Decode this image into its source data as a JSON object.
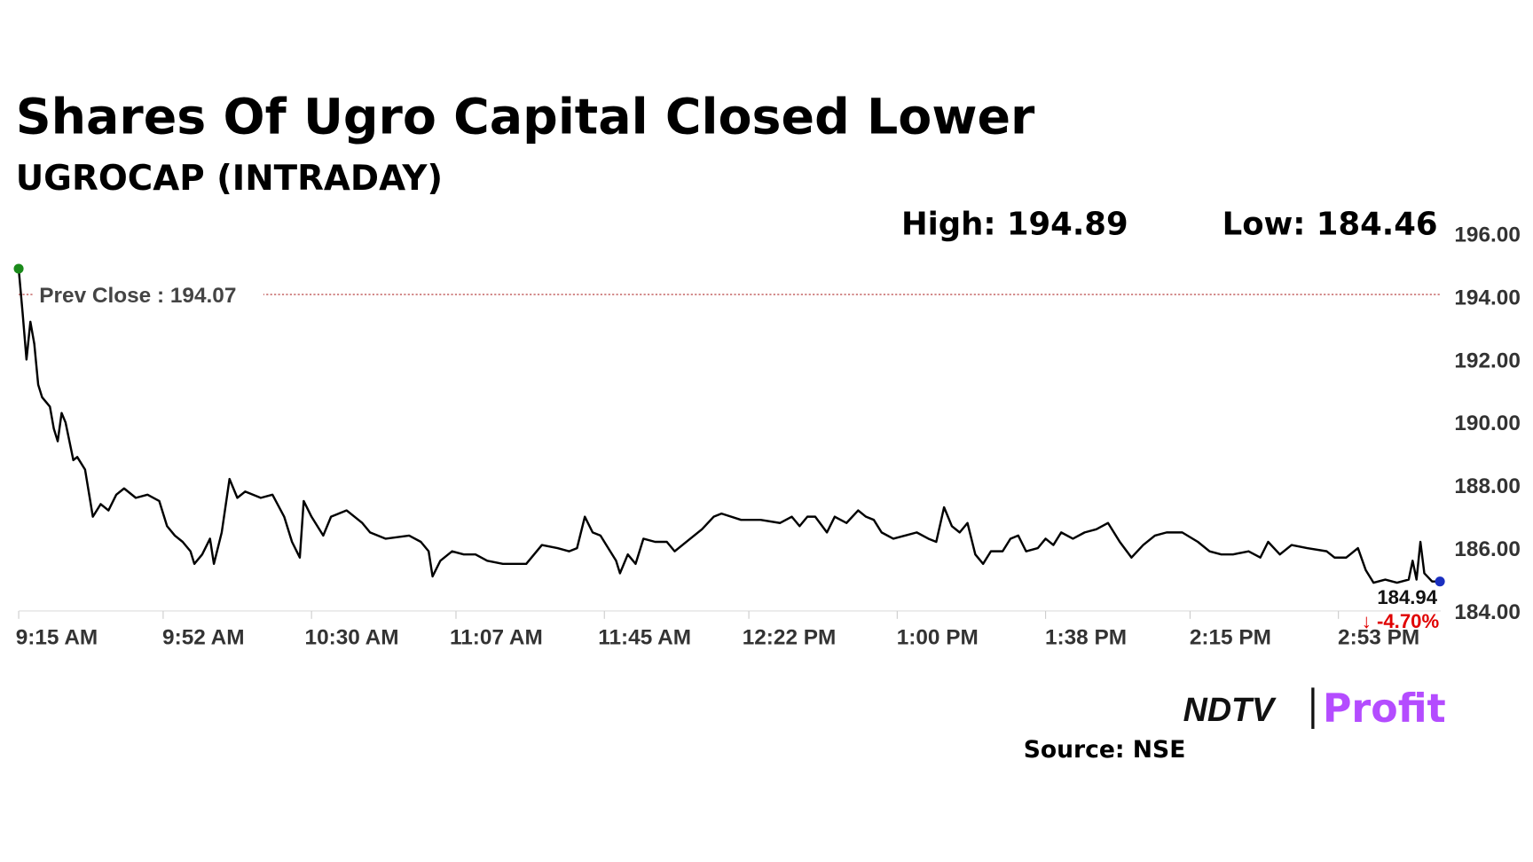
{
  "chart_data": {
    "type": "line",
    "title": "Shares Of Ugro Capital Closed Lower",
    "subtitle": "UGROCAP (INTRADAY)",
    "annotations": {
      "high": "High: 194.89",
      "low": "Low: 184.46",
      "last": "184.94",
      "change": "↓ -4.70%"
    },
    "prev_close": {
      "value": 194.07,
      "label": "Prev Close : 194.07"
    },
    "color": "#000000",
    "prev_close_color": "#b03030",
    "start_color": "#1a8a1a",
    "end_color": "#1a2fc0",
    "change_color": "#e00000",
    "x": [
      0,
      1,
      2,
      3,
      4,
      5,
      6,
      8,
      9,
      10,
      11,
      12,
      14,
      15,
      17,
      19,
      21,
      23,
      25,
      27,
      30,
      33,
      36,
      38,
      40,
      42,
      44,
      45,
      47,
      49,
      50,
      52,
      54,
      56,
      58,
      62,
      65,
      68,
      70,
      72,
      73,
      75,
      78,
      80,
      84,
      88,
      90,
      94,
      100,
      103,
      105,
      106,
      108,
      111,
      114,
      117,
      120,
      124,
      130,
      132,
      134,
      138,
      141,
      143,
      145,
      147,
      149,
      151,
      153,
      154,
      156,
      158,
      160,
      163,
      166,
      168,
      172,
      175,
      178,
      180,
      185,
      190,
      195,
      198,
      200,
      202,
      204,
      207,
      209,
      212,
      215,
      217,
      219,
      221,
      224,
      227,
      230,
      233,
      235,
      237,
      239,
      241,
      243,
      245,
      247,
      249,
      252,
      254,
      256,
      258,
      261,
      263,
      265,
      267,
      270,
      273,
      276,
      279,
      282,
      285,
      288,
      291,
      294,
      298,
      302,
      305,
      308,
      311,
      315,
      318,
      320,
      323,
      326,
      330,
      335,
      337,
      340,
      343,
      345,
      347,
      350,
      353,
      356,
      357,
      358,
      359,
      360,
      362,
      364
    ],
    "series": [
      {
        "name": "UGROCAP",
        "color": "#000000",
        "values": [
          194.89,
          193.5,
          192,
          193.2,
          192.5,
          191.2,
          190.8,
          190.5,
          189.8,
          189.4,
          190.3,
          190.0,
          188.8,
          188.9,
          188.5,
          187.0,
          187.4,
          187.2,
          187.7,
          187.9,
          187.6,
          187.7,
          187.5,
          186.7,
          186.4,
          186.2,
          185.9,
          185.5,
          185.8,
          186.3,
          185.5,
          186.5,
          188.2,
          187.6,
          187.8,
          187.6,
          187.7,
          187.0,
          186.2,
          185.7,
          187.5,
          187.0,
          186.4,
          187.0,
          187.2,
          186.8,
          186.5,
          186.3,
          186.4,
          186.2,
          185.9,
          185.1,
          185.6,
          185.9,
          185.8,
          185.8,
          185.6,
          185.5,
          185.5,
          185.8,
          186.1,
          186.0,
          185.9,
          186.0,
          187.0,
          186.5,
          186.4,
          186.0,
          185.6,
          185.2,
          185.8,
          185.5,
          186.3,
          186.2,
          186.2,
          185.9,
          186.3,
          186.6,
          187.0,
          187.1,
          186.9,
          186.9,
          186.8,
          187.0,
          186.7,
          187.0,
          187.0,
          186.5,
          187.0,
          186.8,
          187.2,
          187.0,
          186.9,
          186.5,
          186.3,
          186.4,
          186.5,
          186.3,
          186.2,
          187.3,
          186.7,
          186.5,
          186.8,
          185.8,
          185.5,
          185.9,
          185.9,
          186.3,
          186.4,
          185.9,
          186.0,
          186.3,
          186.1,
          186.5,
          186.3,
          186.5,
          186.6,
          186.8,
          186.2,
          185.7,
          186.1,
          186.4,
          186.5,
          186.5,
          186.2,
          185.9,
          185.8,
          185.8,
          185.9,
          185.7,
          186.2,
          185.8,
          186.1,
          186.0,
          185.9,
          185.7,
          185.7,
          186.0,
          185.3,
          184.9,
          185.0,
          184.9,
          185.0,
          185.6,
          185.0,
          186.2,
          185.2,
          184.94,
          184.94
        ]
      }
    ],
    "xlim": [
      0,
      365
    ],
    "xticks": [
      {
        "value": 0,
        "label": "9:15 AM"
      },
      {
        "value": 37,
        "label": "9:52 AM"
      },
      {
        "value": 75,
        "label": "10:30 AM"
      },
      {
        "value": 112,
        "label": "11:07 AM"
      },
      {
        "value": 150,
        "label": "11:45 AM"
      },
      {
        "value": 187,
        "label": "12:22 PM"
      },
      {
        "value": 225,
        "label": "1:00 PM"
      },
      {
        "value": 263,
        "label": "1:38 PM"
      },
      {
        "value": 300,
        "label": "2:15 PM"
      },
      {
        "value": 338,
        "label": "2:53 PM"
      }
    ],
    "ylim": [
      184,
      196
    ],
    "yticks": [
      {
        "value": 184,
        "label": "184.00"
      },
      {
        "value": 186,
        "label": "186.00"
      },
      {
        "value": 188,
        "label": "188.00"
      },
      {
        "value": 190,
        "label": "190.00"
      },
      {
        "value": 192,
        "label": "192.00"
      },
      {
        "value": 194,
        "label": "194.00"
      },
      {
        "value": 196,
        "label": "196.00"
      }
    ],
    "grid": false
  },
  "footer": {
    "brand": "NDTV",
    "brand_suffix": "Profit",
    "source": "Source: NSE"
  }
}
